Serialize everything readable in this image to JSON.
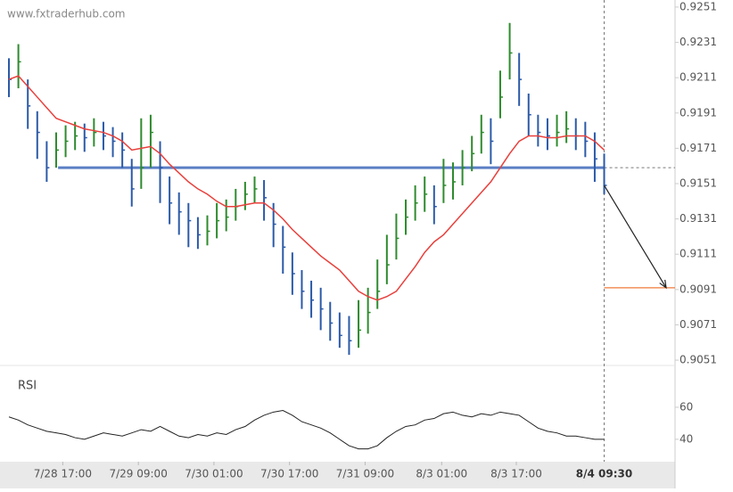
{
  "chart_data": {
    "type": "ohlc",
    "watermark": "www.fxtraderhub.com",
    "xlim": [
      0,
      70.5
    ],
    "xticks": [
      {
        "value": 5.7,
        "label": "7/28 17:00"
      },
      {
        "value": 13.7,
        "label": "7/29 09:00"
      },
      {
        "value": 21.7,
        "label": "7/30 01:00"
      },
      {
        "value": 29.7,
        "label": "7/30 17:00"
      },
      {
        "value": 37.7,
        "label": "7/31 09:00"
      },
      {
        "value": 45.8,
        "label": "8/3 01:00"
      },
      {
        "value": 53.7,
        "label": "8/3 17:00"
      }
    ],
    "current_time": {
      "value": 63,
      "label": "8/4 09:30"
    },
    "ylim": [
      0.9048,
      0.9255
    ],
    "yticks": [
      0.9051,
      0.9071,
      0.9091,
      0.9111,
      0.9131,
      0.9151,
      0.9171,
      0.9191,
      0.9211,
      0.9231,
      0.9251
    ],
    "up_color": "#2e8b2e",
    "down_color": "#2b5aa8",
    "high": [
      0.9222,
      0.923,
      0.921,
      0.9192,
      0.9175,
      0.918,
      0.9184,
      0.9186,
      0.9185,
      0.9188,
      0.9186,
      0.9183,
      0.918,
      0.9165,
      0.9188,
      0.919,
      0.9175,
      0.9155,
      0.9146,
      0.914,
      0.9132,
      0.9133,
      0.914,
      0.9142,
      0.9148,
      0.9152,
      0.9155,
      0.9153,
      0.914,
      0.9127,
      0.9112,
      0.9102,
      0.9096,
      0.9092,
      0.9084,
      0.9078,
      0.9076,
      0.9085,
      0.9092,
      0.9108,
      0.9122,
      0.9134,
      0.9142,
      0.915,
      0.9155,
      0.915,
      0.9165,
      0.9163,
      0.917,
      0.9178,
      0.919,
      0.9188,
      0.9215,
      0.9242,
      0.9225,
      0.9202,
      0.919,
      0.9188,
      0.919,
      0.9192,
      0.9188,
      0.9186,
      0.918,
      0.9168
    ],
    "low": [
      0.92,
      0.9205,
      0.9182,
      0.9165,
      0.9152,
      0.916,
      0.9166,
      0.917,
      0.9169,
      0.9172,
      0.917,
      0.9166,
      0.916,
      0.9138,
      0.9148,
      0.916,
      0.914,
      0.9128,
      0.9122,
      0.9115,
      0.9114,
      0.9116,
      0.912,
      0.9124,
      0.913,
      0.9136,
      0.914,
      0.913,
      0.9115,
      0.91,
      0.9088,
      0.908,
      0.9075,
      0.9068,
      0.9062,
      0.9058,
      0.9054,
      0.9058,
      0.9066,
      0.908,
      0.9094,
      0.9108,
      0.9122,
      0.913,
      0.9135,
      0.9128,
      0.914,
      0.9142,
      0.915,
      0.9158,
      0.9168,
      0.9162,
      0.9188,
      0.921,
      0.9195,
      0.9178,
      0.9172,
      0.917,
      0.9172,
      0.9174,
      0.917,
      0.9166,
      0.9152,
      0.9145
    ],
    "close": [
      0.921,
      0.922,
      0.9195,
      0.918,
      0.916,
      0.917,
      0.9175,
      0.9178,
      0.9177,
      0.918,
      0.9178,
      0.9175,
      0.917,
      0.9148,
      0.916,
      0.918,
      0.916,
      0.914,
      0.9135,
      0.913,
      0.9122,
      0.9124,
      0.913,
      0.9132,
      0.9138,
      0.9145,
      0.9148,
      0.9143,
      0.9128,
      0.9115,
      0.91,
      0.909,
      0.9085,
      0.908,
      0.9072,
      0.9065,
      0.9062,
      0.9068,
      0.9078,
      0.909,
      0.9105,
      0.912,
      0.9132,
      0.914,
      0.9145,
      0.9138,
      0.915,
      0.9152,
      0.916,
      0.9168,
      0.918,
      0.9175,
      0.92,
      0.9225,
      0.921,
      0.919,
      0.918,
      0.9178,
      0.918,
      0.9182,
      0.9178,
      0.9175,
      0.9165,
      0.915
    ],
    "ma": {
      "color": "#e8403c",
      "values": [
        0.921,
        0.9212,
        0.9206,
        0.92,
        0.9194,
        0.9188,
        0.9186,
        0.9184,
        0.9182,
        0.9181,
        0.918,
        0.9178,
        0.9175,
        0.917,
        0.9171,
        0.9172,
        0.9168,
        0.9162,
        0.9157,
        0.9152,
        0.9148,
        0.9145,
        0.9141,
        0.9138,
        0.9138,
        0.9139,
        0.914,
        0.914,
        0.9136,
        0.9131,
        0.9125,
        0.912,
        0.9115,
        0.911,
        0.9106,
        0.9102,
        0.9096,
        0.909,
        0.9087,
        0.9085,
        0.9087,
        0.909,
        0.9097,
        0.9104,
        0.9112,
        0.9118,
        0.9122,
        0.9128,
        0.9134,
        0.914,
        0.9146,
        0.9152,
        0.916,
        0.9168,
        0.9175,
        0.9178,
        0.9178,
        0.9177,
        0.9177,
        0.9178,
        0.9178,
        0.9178,
        0.9175,
        0.917
      ]
    },
    "level": {
      "value": 0.916,
      "start": 5.2,
      "color": "#5b7fc4"
    },
    "target": {
      "value": 0.9092,
      "color": "#f07a3a"
    },
    "rsi": {
      "label": "RSI",
      "ylim": [
        26,
        74
      ],
      "yticks": [
        40,
        60
      ],
      "values": [
        54,
        52,
        49,
        47,
        45,
        44,
        43,
        41,
        40,
        42,
        44,
        43,
        42,
        44,
        46,
        45,
        48,
        45,
        42,
        41,
        43,
        42,
        44,
        43,
        46,
        48,
        52,
        55,
        57,
        58,
        55,
        51,
        49,
        47,
        44,
        40,
        36,
        34,
        34,
        36,
        41,
        45,
        48,
        49,
        52,
        53,
        56,
        57,
        55,
        54,
        56,
        55,
        57,
        56,
        55,
        51,
        47,
        45,
        44,
        42,
        42,
        41,
        40,
        40
      ]
    }
  }
}
